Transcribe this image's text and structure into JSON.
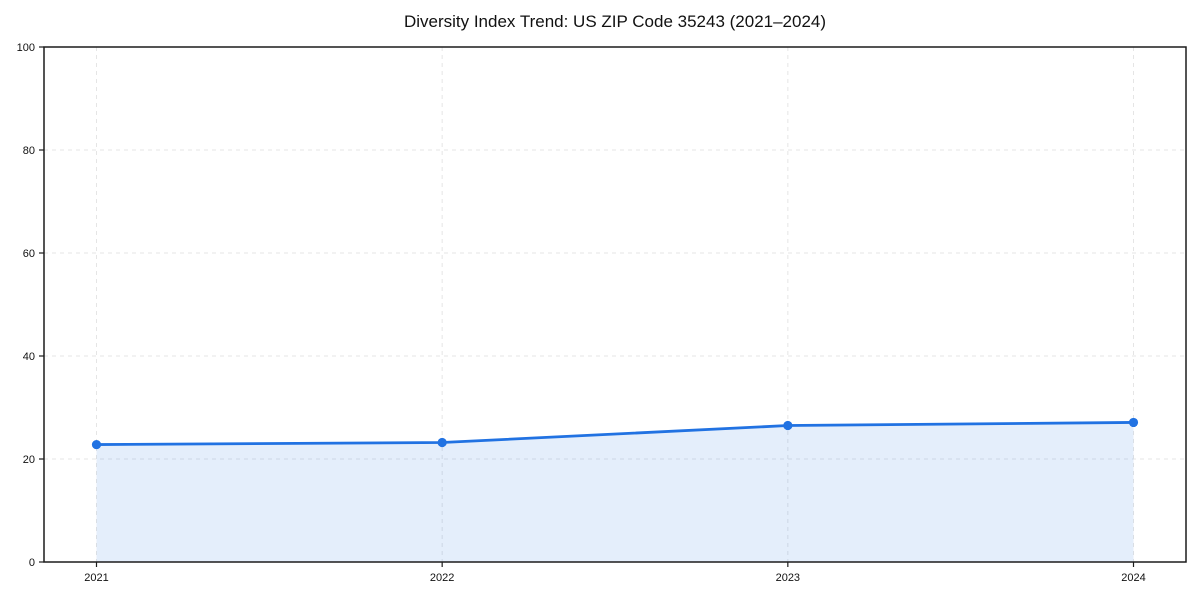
{
  "chart_data": {
    "type": "area",
    "title": "Diversity Index Trend: US ZIP Code 35243 (2021–2024)",
    "xlabel": "",
    "ylabel": "",
    "x": [
      "2021",
      "2022",
      "2023",
      "2024"
    ],
    "series": [
      {
        "name": "Diversity Index",
        "values": [
          22.8,
          23.2,
          26.5,
          27.1
        ]
      }
    ],
    "ylim": [
      0,
      100
    ],
    "yticks": [
      0,
      20,
      40,
      60,
      80,
      100
    ],
    "grid": "dashed horizontal and vertical gridlines",
    "legend": "none",
    "line_color": "#2172e2",
    "fill_color": "rgba(33,114,226,0.12)",
    "marker": "circle"
  }
}
